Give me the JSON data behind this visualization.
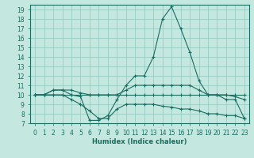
{
  "xlabel": "Humidex (Indice chaleur)",
  "ylabel": "",
  "background_color": "#c4e8e0",
  "grid_color": "#90c8be",
  "line_color": "#1a6b60",
  "xlim": [
    -0.5,
    23.5
  ],
  "ylim": [
    7,
    19.5
  ],
  "yticks": [
    7,
    8,
    9,
    10,
    11,
    12,
    13,
    14,
    15,
    16,
    17,
    18,
    19
  ],
  "xticks": [
    0,
    1,
    2,
    3,
    4,
    5,
    6,
    7,
    8,
    9,
    10,
    11,
    12,
    13,
    14,
    15,
    16,
    17,
    18,
    19,
    20,
    21,
    22,
    23
  ],
  "xtick_labels": [
    "0",
    "1",
    "2",
    "3",
    "4",
    "5",
    "6",
    "7",
    "8",
    "9",
    "10",
    "11",
    "12",
    "13",
    "14",
    "15",
    "16",
    "17",
    "18",
    "19",
    "20",
    "21",
    "22",
    "23"
  ],
  "series": [
    [
      10,
      10,
      10.5,
      10.5,
      10,
      9.8,
      7.3,
      7.3,
      7.8,
      9.5,
      11,
      12,
      12,
      14,
      18,
      19.3,
      17,
      14.5,
      11.5,
      10,
      10,
      9.5,
      9.5,
      7.5
    ],
    [
      10,
      10,
      10.5,
      10.5,
      10.5,
      10.2,
      10,
      10,
      10,
      10,
      10.5,
      11,
      11,
      11,
      11,
      11,
      11,
      11,
      10.5,
      10,
      10,
      10,
      9.8,
      9.5
    ],
    [
      10,
      10,
      10,
      10,
      9.5,
      9,
      8.3,
      7.5,
      7.5,
      8.5,
      9,
      9,
      9,
      9,
      8.8,
      8.7,
      8.5,
      8.5,
      8.3,
      8,
      8,
      7.8,
      7.8,
      7.5
    ],
    [
      10,
      10,
      10,
      10,
      10,
      10,
      10,
      10,
      10,
      10,
      10,
      10,
      10,
      10,
      10,
      10,
      10,
      10,
      10,
      10,
      10,
      10,
      10,
      10
    ]
  ]
}
